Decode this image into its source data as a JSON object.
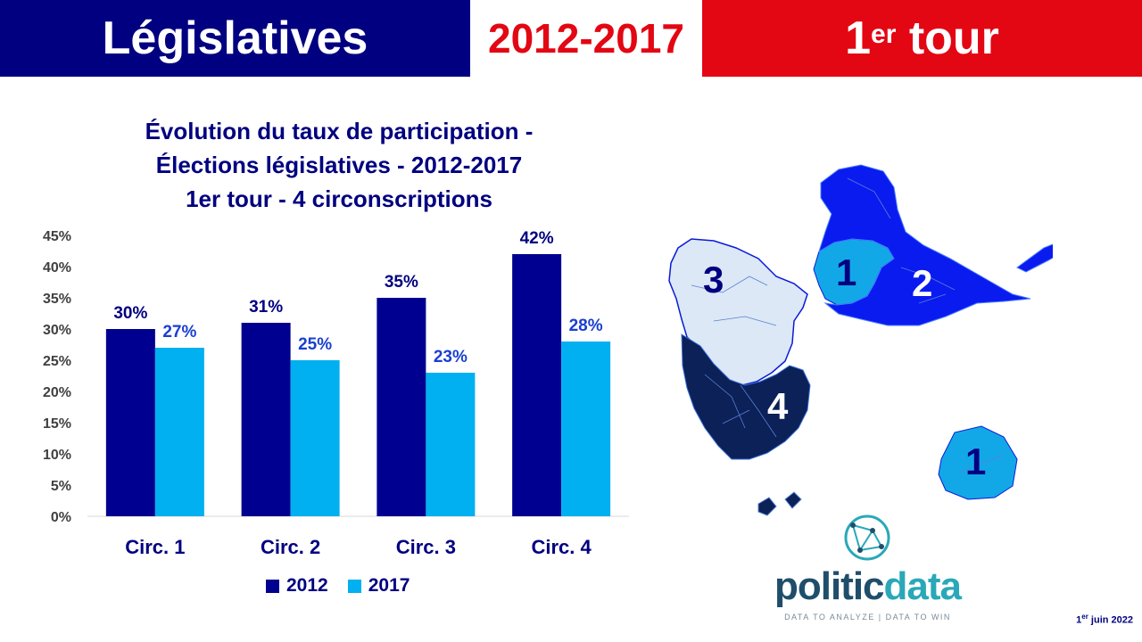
{
  "header": {
    "left": "Législatives",
    "middle": "2012-2017",
    "right_main": "1",
    "right_sup": "er",
    "right_suffix": " tour"
  },
  "colors": {
    "navy": "#000080",
    "red": "#e30613",
    "series_2012": "#000090",
    "series_2017": "#00b0f0"
  },
  "chart_data": {
    "type": "bar",
    "title_lines": [
      "Évolution du taux de participation -",
      "Élections législatives - 2012-2017",
      "1er tour - 4 circonscriptions"
    ],
    "categories": [
      "Circ. 1",
      "Circ. 2",
      "Circ. 3",
      "Circ. 4"
    ],
    "series": [
      {
        "name": "2012",
        "values": [
          30,
          31,
          35,
          42
        ]
      },
      {
        "name": "2017",
        "values": [
          27,
          25,
          23,
          28
        ]
      }
    ],
    "ylim": [
      0,
      45
    ],
    "yticks": [
      0,
      5,
      10,
      15,
      20,
      25,
      30,
      35,
      40,
      45
    ],
    "tick_suffix": "%",
    "grid": false,
    "legend_position": "bottom"
  },
  "map": {
    "labels": [
      "3",
      "1",
      "2",
      "4",
      "1"
    ]
  },
  "logo": {
    "word_part1": "politic",
    "word_part2": "data",
    "tagline": "DATA TO ANALYZE | DATA TO WIN"
  },
  "footer": {
    "date_day": "1",
    "date_sup": "er",
    "date_rest": " juin 2022"
  }
}
